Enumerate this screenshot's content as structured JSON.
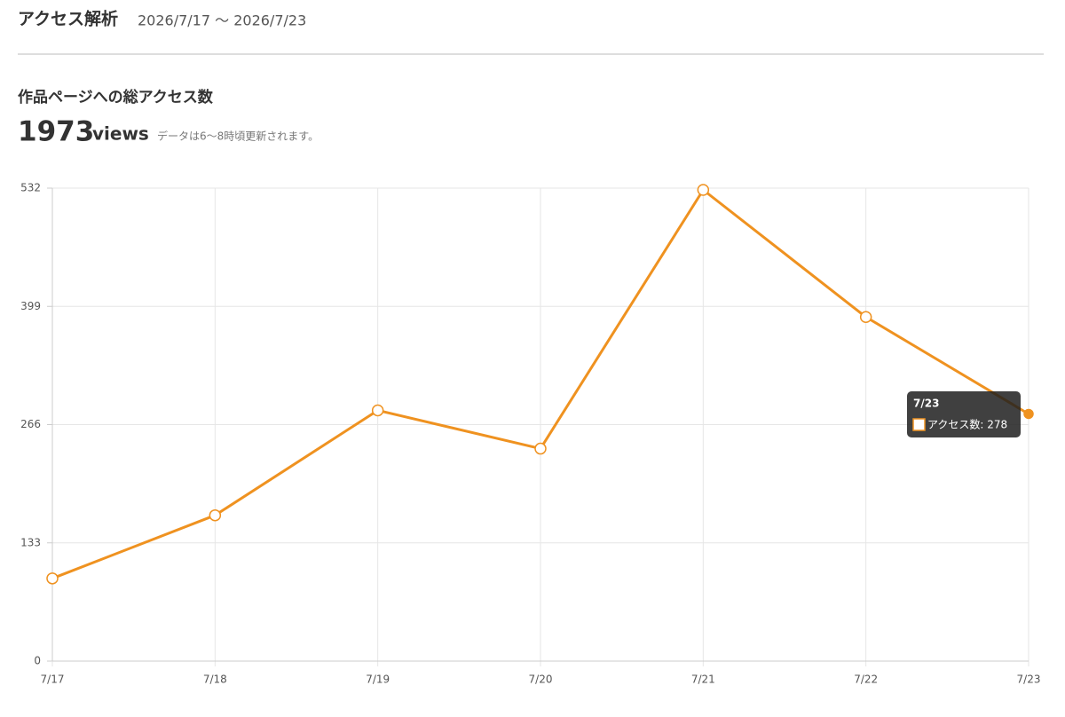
{
  "header": {
    "title": "アクセス解析",
    "date_range": "2026/7/17 〜 2026/7/23"
  },
  "summary": {
    "title": "作品ページへの総アクセス数",
    "total": 1973,
    "unit": "views",
    "note": "データは6〜8時頃更新されます。"
  },
  "chart_data": {
    "type": "line",
    "categories": [
      "7/17",
      "7/18",
      "7/19",
      "7/20",
      "7/21",
      "7/22",
      "7/23"
    ],
    "series": [
      {
        "name": "アクセス数",
        "color": "#ef9220",
        "values": [
          93,
          164,
          282,
          239,
          530,
          387,
          278
        ]
      }
    ],
    "ylim": [
      0,
      532
    ],
    "yticks": [
      0,
      133,
      266,
      399,
      532
    ],
    "grid": true,
    "tooltip": {
      "title": "7/23",
      "label": "アクセス数: 278"
    }
  }
}
